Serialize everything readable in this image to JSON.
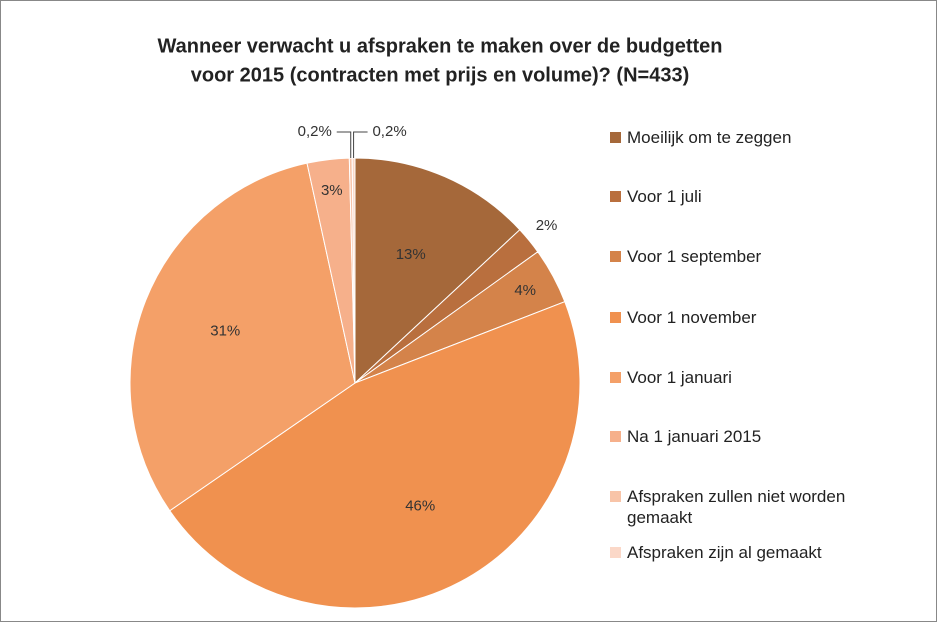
{
  "chart_data": {
    "type": "pie",
    "title": [
      "Wanneer verwacht u afspraken te maken over de budgetten",
      "voor 2015 (contracten met prijs en volume)? (N=433)"
    ],
    "categories": [
      "Moeilijk om te zeggen",
      "Voor 1 juli",
      "Voor 1 september",
      "Voor 1 november",
      "Voor 1 januari",
      "Na 1 januari 2015",
      "Afspraken zullen niet worden gemaakt",
      "Afspraken zijn al gemaakt"
    ],
    "values": [
      13,
      2,
      4,
      46,
      31,
      3,
      0.2,
      0.2
    ],
    "value_labels": [
      "13%",
      "2%",
      "4%",
      "46%",
      "31%",
      "3%",
      "0,2%",
      "0,2%"
    ],
    "colors": [
      "#a5683a",
      "#b96f3e",
      "#d4834a",
      "#f0914f",
      "#f4a068",
      "#f6b08b",
      "#f8c4a8",
      "#fbd8c8"
    ],
    "legend": "right"
  }
}
